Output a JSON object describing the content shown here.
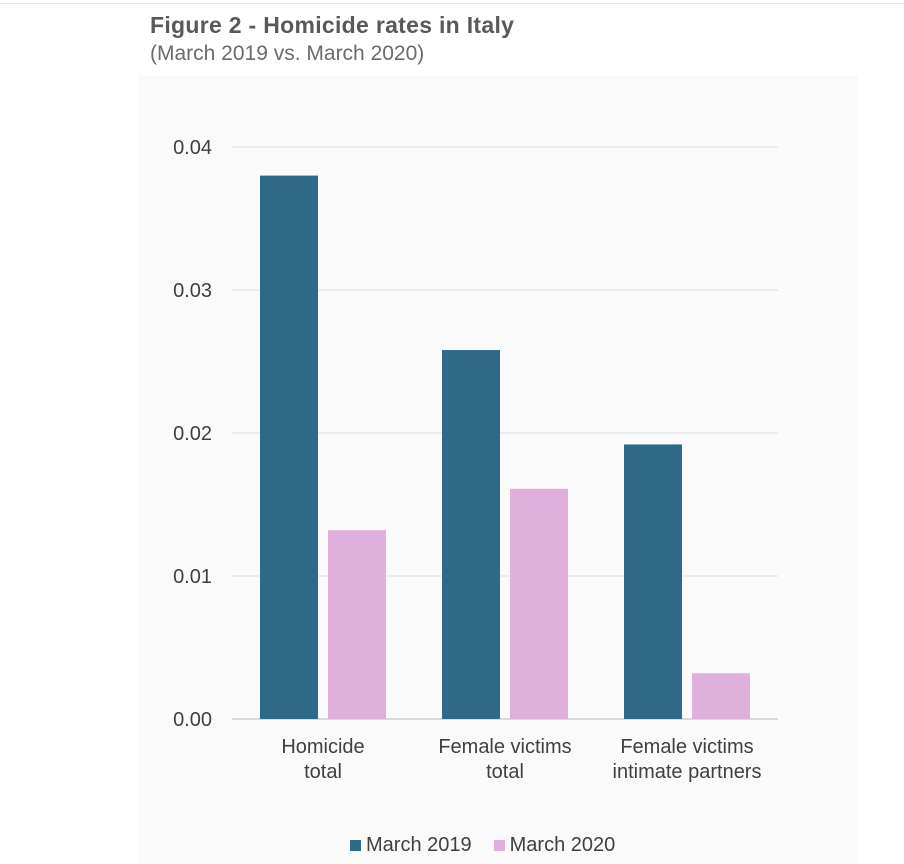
{
  "chart_data": {
    "type": "bar",
    "title": "Figure 2 - Homicide rates in Italy",
    "subtitle": "(March 2019 vs. March 2020)",
    "xlabel": "",
    "ylabel": "",
    "categories": [
      [
        "Homicide",
        "total"
      ],
      [
        "Female victims",
        "total"
      ],
      [
        "Female victims",
        "intimate partners"
      ]
    ],
    "series": [
      {
        "name": "March 2019",
        "color": "#2e6a87",
        "values": [
          0.038,
          0.0258,
          0.0192
        ]
      },
      {
        "name": "March 2020",
        "color": "#dfb0db",
        "values": [
          0.0132,
          0.0161,
          0.0032
        ]
      }
    ],
    "ylim": [
      0,
      0.04
    ],
    "yticks": [
      "0.00",
      "0.01",
      "0.02",
      "0.03",
      "0.04"
    ],
    "grid": true,
    "legend_position": "bottom"
  }
}
